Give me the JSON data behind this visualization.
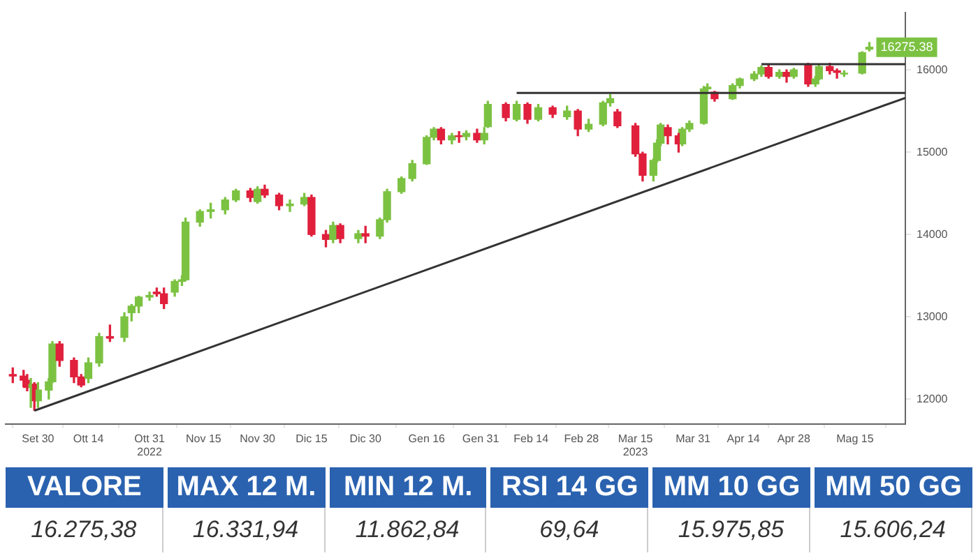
{
  "chart_data": [
    {
      "type": "candlestick",
      "x": [
        "2022-09-23",
        "2022-09-26",
        "2022-09-27",
        "2022-09-28",
        "2022-09-29",
        "2022-09-30",
        "2022-10-03",
        "2022-10-04",
        "2022-10-06",
        "2022-10-10",
        "2022-10-12",
        "2022-10-14",
        "2022-10-17",
        "2022-10-20",
        "2022-10-24",
        "2022-10-26",
        "2022-10-28",
        "2022-10-31",
        "2022-11-02",
        "2022-11-04",
        "2022-11-07",
        "2022-11-09",
        "2022-11-10",
        "2022-11-14",
        "2022-11-17",
        "2022-11-21",
        "2022-11-24",
        "2022-11-28",
        "2022-11-30",
        "2022-12-02",
        "2022-12-06",
        "2022-12-09",
        "2022-12-13",
        "2022-12-15",
        "2022-12-19",
        "2022-12-21",
        "2022-12-23",
        "2022-12-28",
        "2022-12-30",
        "2023-01-03",
        "2023-01-05",
        "2023-01-09",
        "2023-01-12",
        "2023-01-16",
        "2023-01-18",
        "2023-01-20",
        "2023-01-23",
        "2023-01-25",
        "2023-01-27",
        "2023-01-30",
        "2023-02-01",
        "2023-02-02",
        "2023-02-07",
        "2023-02-10",
        "2023-02-13",
        "2023-02-16",
        "2023-02-20",
        "2023-02-24",
        "2023-02-27",
        "2023-03-02",
        "2023-03-06",
        "2023-03-08",
        "2023-03-10",
        "2023-03-15",
        "2023-03-17",
        "2023-03-20",
        "2023-03-21",
        "2023-03-22",
        "2023-03-24",
        "2023-03-27",
        "2023-03-28",
        "2023-03-30",
        "2023-04-03",
        "2023-04-04",
        "2023-04-06",
        "2023-04-11",
        "2023-04-13",
        "2023-04-17",
        "2023-04-19",
        "2023-04-21",
        "2023-04-24",
        "2023-04-26",
        "2023-04-28",
        "2023-05-02",
        "2023-05-04",
        "2023-05-05",
        "2023-05-08",
        "2023-05-10",
        "2023-05-12",
        "2023-05-17",
        "2023-05-19"
      ],
      "ohlc": [
        [
          12300,
          12380,
          12200,
          12280
        ],
        [
          12280,
          12350,
          12150,
          12230
        ],
        [
          12230,
          12300,
          12100,
          12140
        ],
        [
          12140,
          12250,
          11900,
          12180
        ],
        [
          12180,
          12200,
          11862.84,
          11980
        ],
        [
          11980,
          12200,
          11900,
          12110
        ],
        [
          12110,
          12250,
          12000,
          12210
        ],
        [
          12210,
          12700,
          12200,
          12670
        ],
        [
          12670,
          12700,
          12400,
          12470
        ],
        [
          12470,
          12500,
          12200,
          12270
        ],
        [
          12270,
          12300,
          12150,
          12170
        ],
        [
          12250,
          12500,
          12200,
          12440
        ],
        [
          12440,
          12800,
          12400,
          12760
        ],
        [
          12760,
          12900,
          12700,
          12740
        ],
        [
          12750,
          13050,
          12700,
          13000
        ],
        [
          13050,
          13150,
          12950,
          13130
        ],
        [
          13130,
          13250,
          13050,
          13240
        ],
        [
          13240,
          13300,
          13200,
          13260
        ],
        [
          13300,
          13350,
          13250,
          13280
        ],
        [
          13280,
          13350,
          13100,
          13160
        ],
        [
          13300,
          13450,
          13250,
          13430
        ],
        [
          13430,
          13500,
          13380,
          13450
        ],
        [
          13450,
          14200,
          13440,
          14150
        ],
        [
          14150,
          14300,
          14100,
          14280
        ],
        [
          14280,
          14380,
          14200,
          14300
        ],
        [
          14300,
          14450,
          14250,
          14420
        ],
        [
          14420,
          14550,
          14400,
          14530
        ],
        [
          14530,
          14560,
          14400,
          14450
        ],
        [
          14400,
          14580,
          14380,
          14550
        ],
        [
          14550,
          14600,
          14450,
          14480
        ],
        [
          14480,
          14500,
          14300,
          14350
        ],
        [
          14350,
          14420,
          14280,
          14370
        ],
        [
          14370,
          14500,
          14350,
          14450
        ],
        [
          14450,
          14480,
          13980,
          14000
        ],
        [
          14000,
          14050,
          13850,
          13940
        ],
        [
          13940,
          14150,
          13900,
          14110
        ],
        [
          14110,
          14130,
          13900,
          13950
        ],
        [
          13950,
          14050,
          13900,
          14010
        ],
        [
          14010,
          14100,
          13900,
          13980
        ],
        [
          13980,
          14200,
          13950,
          14180
        ],
        [
          14180,
          14550,
          14150,
          14520
        ],
        [
          14520,
          14700,
          14500,
          14680
        ],
        [
          14680,
          14900,
          14650,
          14860
        ],
        [
          14860,
          15200,
          14850,
          15180
        ],
        [
          15180,
          15300,
          15150,
          15280
        ],
        [
          15280,
          15300,
          15100,
          15150
        ],
        [
          15150,
          15230,
          15100,
          15200
        ],
        [
          15200,
          15250,
          15120,
          15190
        ],
        [
          15190,
          15260,
          15150,
          15230
        ],
        [
          15230,
          15280,
          15120,
          15150
        ],
        [
          15150,
          15300,
          15100,
          15230
        ],
        [
          15310,
          15620,
          15300,
          15580
        ],
        [
          15580,
          15600,
          15380,
          15420
        ],
        [
          15400,
          15620,
          15380,
          15580
        ],
        [
          15580,
          15600,
          15350,
          15400
        ],
        [
          15400,
          15580,
          15380,
          15540
        ],
        [
          15540,
          15560,
          15420,
          15460
        ],
        [
          15430,
          15560,
          15400,
          15500
        ],
        [
          15500,
          15520,
          15200,
          15280
        ],
        [
          15280,
          15400,
          15250,
          15340
        ],
        [
          15340,
          15620,
          15320,
          15600
        ],
        [
          15600,
          15700,
          15560,
          15650
        ],
        [
          15490,
          15520,
          15300,
          15320
        ],
        [
          15320,
          15350,
          14950,
          14980
        ],
        [
          14980,
          15000,
          14650,
          14720
        ],
        [
          14720,
          14920,
          14650,
          14900
        ],
        [
          14900,
          15150,
          14880,
          15110
        ],
        [
          15110,
          15350,
          15080,
          15330
        ],
        [
          15300,
          15330,
          15100,
          15200
        ],
        [
          15200,
          15230,
          15000,
          15100
        ],
        [
          15100,
          15300,
          15080,
          15280
        ],
        [
          15280,
          15380,
          15250,
          15350
        ],
        [
          15350,
          15800,
          15340,
          15770
        ],
        [
          15770,
          15830,
          15730,
          15790
        ],
        [
          15730,
          15740,
          15620,
          15650
        ],
        [
          15650,
          15830,
          15640,
          15810
        ],
        [
          15810,
          15900,
          15780,
          15890
        ],
        [
          15890,
          15980,
          15870,
          15950
        ],
        [
          15950,
          16050,
          15920,
          16030
        ],
        [
          16030,
          16060,
          15900,
          15920
        ],
        [
          15920,
          16000,
          15900,
          15970
        ],
        [
          15970,
          16000,
          15850,
          15920
        ],
        [
          15920,
          16020,
          15900,
          16000
        ],
        [
          16060,
          16080,
          15800,
          15830
        ],
        [
          15830,
          15920,
          15800,
          15890
        ],
        [
          15890,
          16060,
          15880,
          16040
        ],
        [
          16040,
          16080,
          15950,
          15990
        ],
        [
          15990,
          16010,
          15900,
          15970
        ],
        [
          15950,
          15990,
          15920,
          15960
        ],
        [
          15960,
          16220,
          15950,
          16210
        ],
        [
          16250,
          16331.94,
          16230,
          16275.38
        ]
      ],
      "colors": [
        "#e0203c",
        "#e0203c",
        "#e0203c",
        "#7cc242",
        "#e0203c",
        "#7cc242",
        "#7cc242",
        "#7cc242",
        "#e0203c",
        "#e0203c",
        "#e0203c",
        "#7cc242",
        "#7cc242",
        "#e0203c",
        "#7cc242",
        "#7cc242",
        "#7cc242",
        "#7cc242",
        "#e0203c",
        "#e0203c",
        "#7cc242",
        "#7cc242",
        "#7cc242",
        "#7cc242",
        "#7cc242",
        "#7cc242",
        "#7cc242",
        "#e0203c",
        "#7cc242",
        "#e0203c",
        "#e0203c",
        "#7cc242",
        "#7cc242",
        "#e0203c",
        "#e0203c",
        "#7cc242",
        "#e0203c",
        "#7cc242",
        "#e0203c",
        "#7cc242",
        "#7cc242",
        "#7cc242",
        "#7cc242",
        "#7cc242",
        "#7cc242",
        "#e0203c",
        "#7cc242",
        "#e0203c",
        "#7cc242",
        "#e0203c",
        "#7cc242",
        "#7cc242",
        "#e0203c",
        "#7cc242",
        "#e0203c",
        "#7cc242",
        "#e0203c",
        "#7cc242",
        "#e0203c",
        "#7cc242",
        "#7cc242",
        "#7cc242",
        "#e0203c",
        "#e0203c",
        "#e0203c",
        "#7cc242",
        "#7cc242",
        "#7cc242",
        "#e0203c",
        "#e0203c",
        "#7cc242",
        "#7cc242",
        "#7cc242",
        "#7cc242",
        "#e0203c",
        "#7cc242",
        "#7cc242",
        "#7cc242",
        "#7cc242",
        "#e0203c",
        "#7cc242",
        "#e0203c",
        "#7cc242",
        "#e0203c",
        "#7cc242",
        "#7cc242",
        "#e0203c",
        "#e0203c",
        "#7cc242",
        "#7cc242",
        "#7cc242"
      ],
      "series": [
        {
          "type": "line",
          "color": "#333333",
          "x": [
            "2022-09-29",
            "2023-05-29"
          ],
          "values": [
            11860,
            15660
          ]
        },
        {
          "type": "line",
          "color": "#333333",
          "x": [
            "2023-02-10",
            "2023-05-29"
          ],
          "values": [
            15720,
            15720
          ]
        },
        {
          "type": "line",
          "color": "#333333",
          "x": [
            "2023-04-19",
            "2023-05-29"
          ],
          "values": [
            16070,
            16070
          ]
        }
      ],
      "xlim": [
        "2022-09-21",
        "2023-05-29"
      ],
      "xticks": [
        {
          "value": "2022-09-30",
          "label": "Set 30"
        },
        {
          "value": "2022-10-14",
          "label": "Ott 14"
        },
        {
          "value": "2022-10-31",
          "label": "Ott 31\n2022"
        },
        {
          "value": "2022-11-15",
          "label": "Nov 15"
        },
        {
          "value": "2022-11-30",
          "label": "Nov 30"
        },
        {
          "value": "2022-12-15",
          "label": "Dic 15"
        },
        {
          "value": "2022-12-30",
          "label": "Dic 30"
        },
        {
          "value": "2023-01-16",
          "label": "Gen 16"
        },
        {
          "value": "2023-01-31",
          "label": "Gen 31"
        },
        {
          "value": "2023-02-14",
          "label": "Feb 14"
        },
        {
          "value": "2023-02-28",
          "label": "Feb 28"
        },
        {
          "value": "2023-03-15",
          "label": "Mar 15\n2023"
        },
        {
          "value": "2023-03-31",
          "label": "Mar 31"
        },
        {
          "value": "2023-04-14",
          "label": "Apr 14"
        },
        {
          "value": "2023-04-28",
          "label": "Apr 28"
        },
        {
          "value": "2023-05-15",
          "label": "Mag 15"
        }
      ],
      "ylim": [
        11700,
        16700
      ],
      "yticks": [
        12000,
        13000,
        14000,
        15000,
        16000
      ],
      "annotations": [
        {
          "text": "16275.38",
          "x": "2023-05-19",
          "y": 16275.38
        }
      ],
      "grid": false,
      "legend": false
    },
    {
      "type": "other",
      "color": "#2a62b0",
      "categories": [
        "VALORE",
        "MAX 12 M.",
        "MIN 12 M.",
        "RSI 14 GG",
        "MM 10 GG",
        "MM 50 GG"
      ],
      "value_labels": [
        "16.275,38",
        "16.331,94",
        "11.862,84",
        "69,64",
        "15.975,85",
        "15.606,24"
      ]
    }
  ]
}
